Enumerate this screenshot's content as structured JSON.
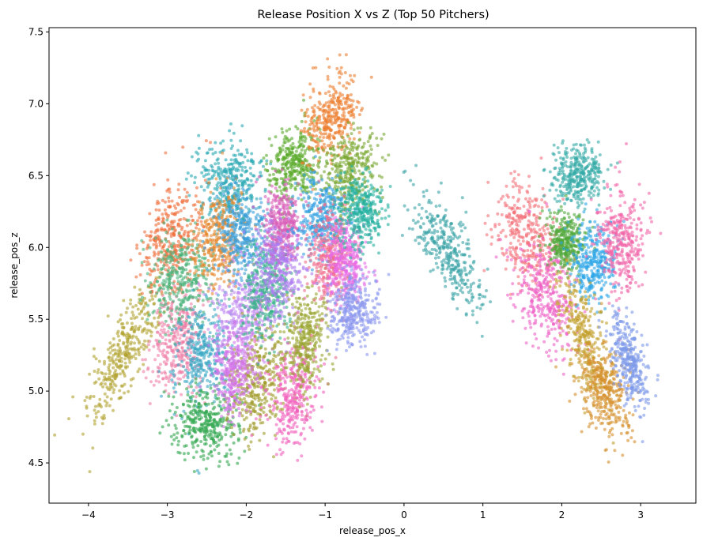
{
  "chart_data": {
    "type": "scatter",
    "title": "Release Position X vs Z (Top 50 Pitchers)",
    "xlabel": "release_pos_x",
    "ylabel": "release_pos_z",
    "xlim": [
      -4.5,
      3.7
    ],
    "ylim": [
      4.22,
      7.53
    ],
    "xticks": [
      -4,
      -3,
      -2,
      -1,
      0,
      1,
      2,
      3
    ],
    "xtick_labels": [
      "−4",
      "−3",
      "−2",
      "−1",
      "0",
      "1",
      "2",
      "3"
    ],
    "yticks": [
      4.5,
      5.0,
      5.5,
      6.0,
      6.5,
      7.0,
      7.5
    ],
    "ytick_labels": [
      "4.5",
      "5.0",
      "5.5",
      "6.0",
      "6.5",
      "7.0",
      "7.5"
    ],
    "grid": false,
    "legend": "none",
    "series": [
      {
        "color": "#b0a22e",
        "center": [
          -3.55,
          5.25
        ],
        "spread": [
          0.22,
          0.24
        ],
        "corr": 0.8
      },
      {
        "color": "#f06f3c",
        "center": [
          -2.95,
          6.05
        ],
        "spread": [
          0.2,
          0.2
        ],
        "corr": 0.3
      },
      {
        "color": "#ee7fa7",
        "center": [
          -2.85,
          5.35
        ],
        "spread": [
          0.16,
          0.18
        ],
        "corr": 0.2
      },
      {
        "color": "#49b37a",
        "center": [
          -2.85,
          5.8
        ],
        "spread": [
          0.2,
          0.18
        ],
        "corr": 0.1
      },
      {
        "color": "#3ba8c5",
        "center": [
          -2.55,
          5.25
        ],
        "spread": [
          0.18,
          0.2
        ],
        "corr": 0.1
      },
      {
        "color": "#30a64f",
        "center": [
          -2.5,
          4.78
        ],
        "spread": [
          0.2,
          0.12
        ],
        "corr": 0.0
      },
      {
        "color": "#2aa9b4",
        "center": [
          -2.2,
          6.45
        ],
        "spread": [
          0.22,
          0.14
        ],
        "corr": 0.0
      },
      {
        "color": "#e5882e",
        "center": [
          -2.35,
          6.05
        ],
        "spread": [
          0.16,
          0.16
        ],
        "corr": 0.1
      },
      {
        "color": "#c18cf2",
        "center": [
          -2.05,
          5.55
        ],
        "spread": [
          0.18,
          0.18
        ],
        "corr": 0.1
      },
      {
        "color": "#a09b29",
        "center": [
          -1.85,
          5.05
        ],
        "spread": [
          0.18,
          0.2
        ],
        "corr": 0.2
      },
      {
        "color": "#d274e8",
        "center": [
          -2.15,
          5.15
        ],
        "spread": [
          0.14,
          0.16
        ],
        "corr": 0.1
      },
      {
        "color": "#3b9fd9",
        "center": [
          -2.05,
          6.1
        ],
        "spread": [
          0.16,
          0.16
        ],
        "corr": 0.0
      },
      {
        "color": "#39b388",
        "center": [
          -1.75,
          5.7
        ],
        "spread": [
          0.16,
          0.18
        ],
        "corr": 0.1
      },
      {
        "color": "#5aaa2a",
        "center": [
          -1.4,
          6.58
        ],
        "spread": [
          0.16,
          0.12
        ],
        "corr": 0.2
      },
      {
        "color": "#d95db8",
        "center": [
          -1.55,
          6.15
        ],
        "spread": [
          0.12,
          0.14
        ],
        "corr": 0.0
      },
      {
        "color": "#ad7cf0",
        "center": [
          -1.6,
          5.85
        ],
        "spread": [
          0.16,
          0.18
        ],
        "corr": 0.0
      },
      {
        "color": "#f260bd",
        "center": [
          -1.4,
          4.98
        ],
        "spread": [
          0.16,
          0.18
        ],
        "corr": 0.2
      },
      {
        "color": "#9aa531",
        "center": [
          -1.25,
          5.35
        ],
        "spread": [
          0.14,
          0.18
        ],
        "corr": 0.1
      },
      {
        "color": "#ec7f31",
        "center": [
          -0.95,
          6.9
        ],
        "spread": [
          0.18,
          0.14
        ],
        "corr": 0.3
      },
      {
        "color": "#79a630",
        "center": [
          -0.7,
          6.52
        ],
        "spread": [
          0.18,
          0.14
        ],
        "corr": 0.1
      },
      {
        "color": "#35a1e3",
        "center": [
          -1.05,
          6.2
        ],
        "spread": [
          0.14,
          0.14
        ],
        "corr": 0.0
      },
      {
        "color": "#f06c8c",
        "center": [
          -0.95,
          5.95
        ],
        "spread": [
          0.14,
          0.16
        ],
        "corr": 0.0
      },
      {
        "color": "#e86be6",
        "center": [
          -0.75,
          5.9
        ],
        "spread": [
          0.14,
          0.14
        ],
        "corr": 0.0
      },
      {
        "color": "#25b0a0",
        "center": [
          -0.55,
          6.25
        ],
        "spread": [
          0.14,
          0.12
        ],
        "corr": 0.0
      },
      {
        "color": "#8c97ee",
        "center": [
          -0.65,
          5.55
        ],
        "spread": [
          0.16,
          0.12
        ],
        "corr": 0.1
      },
      {
        "color": "#3aa3a6",
        "center": [
          0.55,
          5.98
        ],
        "spread": [
          0.22,
          0.2
        ],
        "corr": -0.7
      },
      {
        "color": "#f37179",
        "center": [
          1.55,
          6.1
        ],
        "spread": [
          0.22,
          0.18
        ],
        "corr": -0.3
      },
      {
        "color": "#ef62c6",
        "center": [
          1.8,
          5.65
        ],
        "spread": [
          0.2,
          0.18
        ],
        "corr": -0.3
      },
      {
        "color": "#34aaa7",
        "center": [
          2.2,
          6.5
        ],
        "spread": [
          0.16,
          0.1
        ],
        "corr": 0.0
      },
      {
        "color": "#52a93a",
        "center": [
          2.05,
          6.05
        ],
        "spread": [
          0.12,
          0.1
        ],
        "corr": 0.0
      },
      {
        "color": "#2ea6e8",
        "center": [
          2.4,
          5.9
        ],
        "spread": [
          0.14,
          0.14
        ],
        "corr": 0.0
      },
      {
        "color": "#f165a9",
        "center": [
          2.75,
          6.05
        ],
        "spread": [
          0.16,
          0.18
        ],
        "corr": 0.0
      },
      {
        "color": "#c3a02d",
        "center": [
          2.3,
          5.35
        ],
        "spread": [
          0.16,
          0.22
        ],
        "corr": -0.6
      },
      {
        "color": "#d58f2c",
        "center": [
          2.55,
          5.0
        ],
        "spread": [
          0.16,
          0.16
        ],
        "corr": -0.4
      },
      {
        "color": "#7d9ae9",
        "center": [
          2.85,
          5.2
        ],
        "spread": [
          0.12,
          0.16
        ],
        "corr": -0.5
      }
    ]
  }
}
